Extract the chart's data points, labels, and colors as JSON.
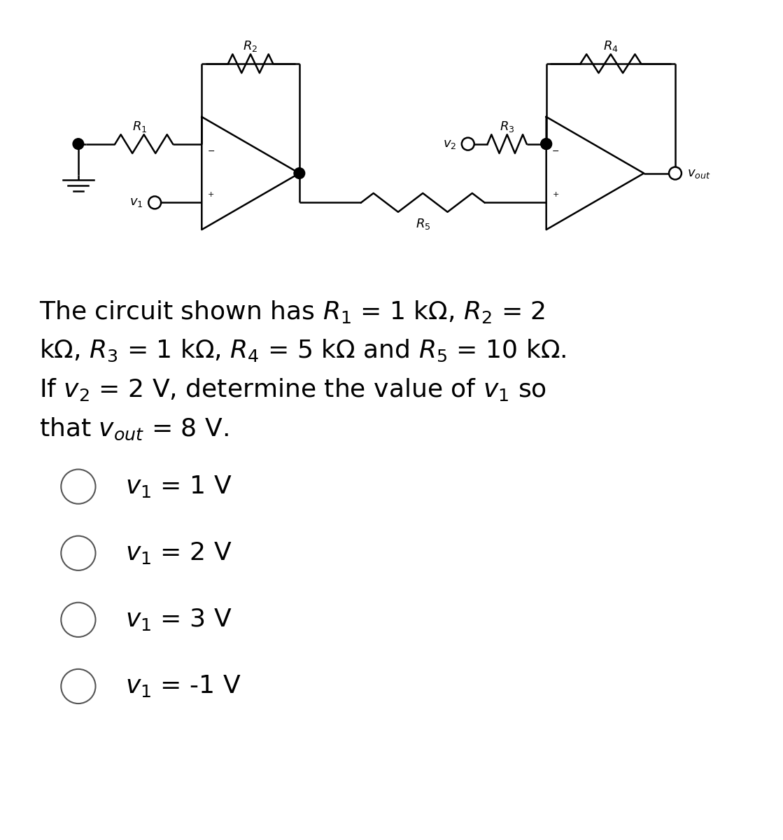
{
  "bg_color": "#ffffff",
  "text_color": "#000000",
  "lw": 1.8,
  "circuit_color": "#000000",
  "q_fontsize": 26,
  "choice_fontsize": 26,
  "label_fontsize": 13,
  "choice_circle_r": 0.022
}
